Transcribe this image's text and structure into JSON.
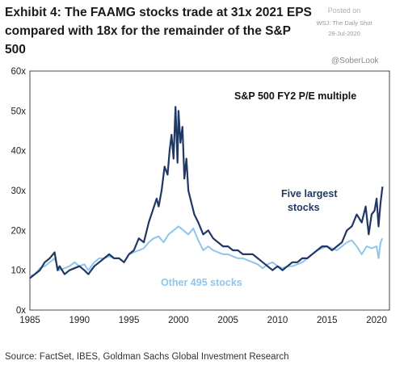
{
  "header": {
    "title": "Exhibit 4: The FAAMG stocks trade at 31x 2021 EPS compared with 18x for the remainder of the S&P 500"
  },
  "stamp": {
    "line1": "Posted on",
    "line2": "WSJ: The Daily Shot",
    "line3": "28-Jul-2020"
  },
  "handle": "@SoberLook",
  "source": "Source: FactSet, IBES, Goldman Sachs Global Investment Research",
  "colors": {
    "five": "#1f3864",
    "other": "#8fc5ea"
  },
  "chart_data": {
    "type": "line",
    "title": "S&P 500 FY2 P/E multiple",
    "xlim": [
      1985,
      2021.3
    ],
    "ylim": [
      0,
      60
    ],
    "x_ticks": [
      "1985",
      "1990",
      "1995",
      "2000",
      "2005",
      "2010",
      "2015",
      "2020"
    ],
    "x_tick_values": [
      1985,
      1990,
      1995,
      2000,
      2005,
      2010,
      2015,
      2020
    ],
    "y_ticks": [
      "0x",
      "10x",
      "20x",
      "30x",
      "40x",
      "50x",
      "60x"
    ],
    "y_tick_values": [
      0,
      10,
      20,
      30,
      40,
      50,
      60
    ],
    "grid": false,
    "series": [
      {
        "name": "Five largest stocks",
        "color": "#1f3864",
        "x": [
          1985,
          1985.5,
          1986,
          1986.5,
          1987,
          1987.5,
          1987.8,
          1988,
          1988.5,
          1989,
          1989.5,
          1990,
          1990.5,
          1990.9,
          1991.5,
          1992,
          1992.5,
          1993,
          1993.5,
          1994,
          1994.5,
          1995,
          1995.5,
          1996,
          1996.5,
          1997,
          1997.4,
          1997.8,
          1998,
          1998.3,
          1998.6,
          1998.9,
          1999.1,
          1999.3,
          1999.5,
          1999.7,
          1999.9,
          2000.0,
          2000.2,
          2000.4,
          2000.6,
          2000.8,
          2001.0,
          2001.3,
          2001.6,
          2002,
          2002.5,
          2003,
          2003.5,
          2004,
          2004.5,
          2005,
          2005.5,
          2006,
          2006.5,
          2007,
          2007.5,
          2008,
          2008.5,
          2009,
          2009.5,
          2010,
          2010.5,
          2011,
          2011.5,
          2012,
          2012.5,
          2013,
          2013.5,
          2014,
          2014.5,
          2015,
          2015.5,
          2016,
          2016.5,
          2017,
          2017.5,
          2018,
          2018.5,
          2018.9,
          2019.2,
          2019.5,
          2019.8,
          2020.0,
          2020.2,
          2020.4,
          2020.6
        ],
        "values": [
          8,
          9,
          10,
          12,
          13,
          14.5,
          10,
          11,
          9,
          10,
          10.5,
          11,
          10,
          9,
          11,
          12,
          13,
          14,
          13,
          13,
          12,
          14,
          15,
          18,
          17,
          22,
          25,
          28,
          26,
          30,
          36,
          34,
          40,
          44,
          38,
          51,
          37,
          50,
          42,
          46,
          33,
          38,
          30,
          27,
          24,
          22,
          19,
          20,
          18,
          17,
          16,
          16,
          15,
          15,
          14,
          14,
          14,
          13,
          12,
          11,
          10,
          11,
          10,
          11,
          12,
          12,
          13,
          13,
          14,
          15,
          16,
          16,
          15,
          16,
          17,
          20,
          21,
          24,
          22,
          26,
          19,
          24,
          25,
          28,
          21,
          27,
          31
        ]
      },
      {
        "name": "Other 495 stocks",
        "color": "#8fc5ea",
        "x": [
          1985,
          1985.5,
          1986,
          1986.5,
          1987,
          1987.5,
          1987.9,
          1988.5,
          1989,
          1989.5,
          1990,
          1990.5,
          1990.9,
          1991.5,
          1992,
          1992.5,
          1993,
          1993.5,
          1994,
          1994.5,
          1995,
          1995.5,
          1996,
          1996.5,
          1997,
          1997.5,
          1998,
          1998.5,
          1999,
          1999.5,
          2000,
          2000.5,
          2001,
          2001.5,
          2002,
          2002.5,
          2003,
          2003.5,
          2004,
          2004.5,
          2005,
          2005.5,
          2006,
          2006.5,
          2007,
          2007.5,
          2008,
          2008.5,
          2009,
          2009.5,
          2010,
          2010.5,
          2011,
          2011.5,
          2012,
          2012.5,
          2013,
          2013.5,
          2014,
          2014.5,
          2015,
          2015.5,
          2016,
          2016.5,
          2017,
          2017.5,
          2018,
          2018.5,
          2019,
          2019.5,
          2020,
          2020.2,
          2020.4,
          2020.6
        ],
        "values": [
          8.5,
          9,
          10.5,
          11,
          12,
          13,
          10,
          10.5,
          11,
          12,
          11,
          11.5,
          10,
          12,
          13,
          13,
          13.5,
          13,
          13,
          12,
          14,
          14.5,
          15,
          15.5,
          17,
          18,
          18.5,
          17,
          19,
          20,
          21,
          20,
          19,
          20.5,
          17.5,
          15,
          16,
          15,
          14.5,
          14,
          14,
          13.5,
          13,
          13,
          12.5,
          12,
          11.5,
          10.5,
          11.5,
          12,
          11,
          10.5,
          11,
          11,
          11.5,
          12,
          13,
          14,
          15,
          15.5,
          16,
          15.5,
          15,
          16,
          17,
          17.5,
          16,
          14,
          16,
          15.5,
          16,
          13,
          17,
          18
        ]
      }
    ],
    "annotations": [
      "Five largest stocks",
      "Other 495 stocks"
    ]
  }
}
